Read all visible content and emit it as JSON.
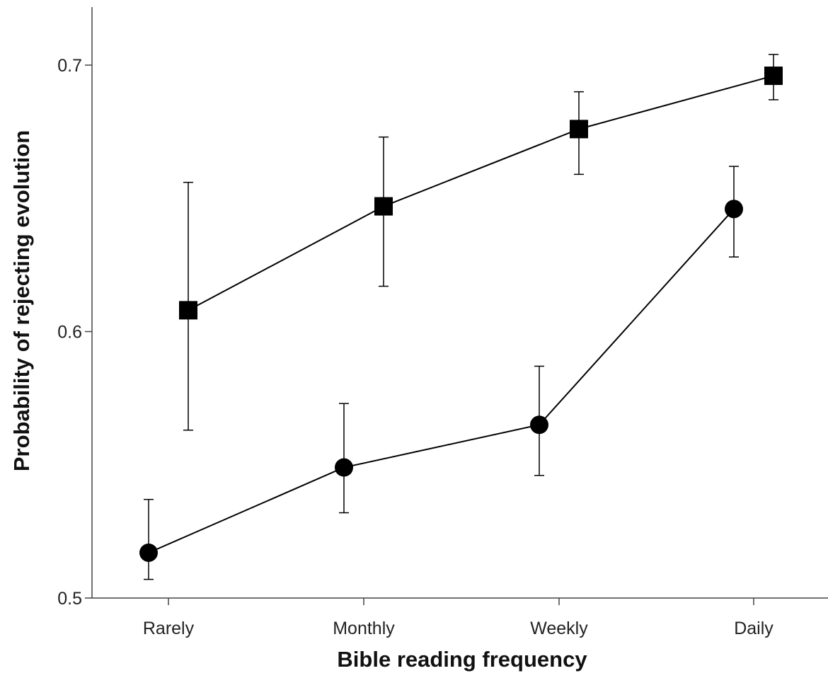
{
  "colors": {
    "axis": "#444444",
    "series": "#000000",
    "background": "#ffffff"
  },
  "chart_data": {
    "type": "line",
    "xlabel": "Bible reading frequency",
    "ylabel": "Probability of rejecting evolution",
    "categories": [
      "Rarely",
      "Monthly",
      "Weekly",
      "Daily"
    ],
    "ylim": [
      0.5,
      0.72
    ],
    "yticks": [
      0.5,
      0.6,
      0.7
    ],
    "ytick_labels": [
      "0.5",
      "0.6",
      "0.7"
    ],
    "grid": false,
    "legend": "none",
    "series": [
      {
        "marker": "square",
        "values": [
          0.608,
          0.647,
          0.676,
          0.696
        ],
        "error_low": [
          0.563,
          0.617,
          0.659,
          0.687
        ],
        "error_high": [
          0.656,
          0.673,
          0.69,
          0.704
        ]
      },
      {
        "marker": "circle",
        "values": [
          0.517,
          0.549,
          0.565,
          0.646
        ],
        "error_low": [
          0.507,
          0.532,
          0.546,
          0.628
        ],
        "error_high": [
          0.537,
          0.573,
          0.587,
          0.662
        ]
      }
    ]
  }
}
